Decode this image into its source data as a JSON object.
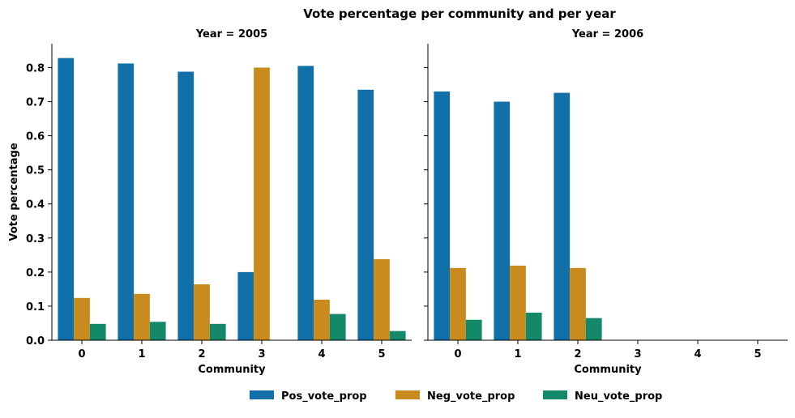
{
  "chart_data": {
    "type": "bar",
    "title": "Vote percentage per community and per year",
    "ylabel": "Vote percentage",
    "xlabel": "Community",
    "ylim": [
      0,
      0.87
    ],
    "yticks": [
      "0.0",
      "0.1",
      "0.2",
      "0.3",
      "0.4",
      "0.5",
      "0.6",
      "0.7",
      "0.8"
    ],
    "categories": [
      "0",
      "1",
      "2",
      "3",
      "4",
      "5"
    ],
    "legend_position": "bottom-center",
    "series_colors": {
      "Pos_vote_prop": "#1170aa",
      "Neg_vote_prop": "#c98a1e",
      "Neu_vote_prop": "#14896a"
    },
    "panels": [
      {
        "title": "Year = 2005",
        "series": [
          {
            "name": "Pos_vote_prop",
            "values": [
              0.828,
              0.812,
              0.788,
              0.2,
              0.805,
              0.735
            ]
          },
          {
            "name": "Neg_vote_prop",
            "values": [
              0.124,
              0.136,
              0.164,
              0.8,
              0.119,
              0.238
            ]
          },
          {
            "name": "Neu_vote_prop",
            "values": [
              0.048,
              0.054,
              0.048,
              0.0,
              0.077,
              0.027
            ]
          }
        ]
      },
      {
        "title": "Year = 2006",
        "series": [
          {
            "name": "Pos_vote_prop",
            "values": [
              0.73,
              0.7,
              0.726,
              null,
              null,
              null
            ]
          },
          {
            "name": "Neg_vote_prop",
            "values": [
              0.212,
              0.219,
              0.212,
              null,
              null,
              null
            ]
          },
          {
            "name": "Neu_vote_prop",
            "values": [
              0.06,
              0.081,
              0.065,
              null,
              null,
              null
            ]
          }
        ]
      }
    ],
    "legend": [
      "Pos_vote_prop",
      "Neg_vote_prop",
      "Neu_vote_prop"
    ]
  }
}
